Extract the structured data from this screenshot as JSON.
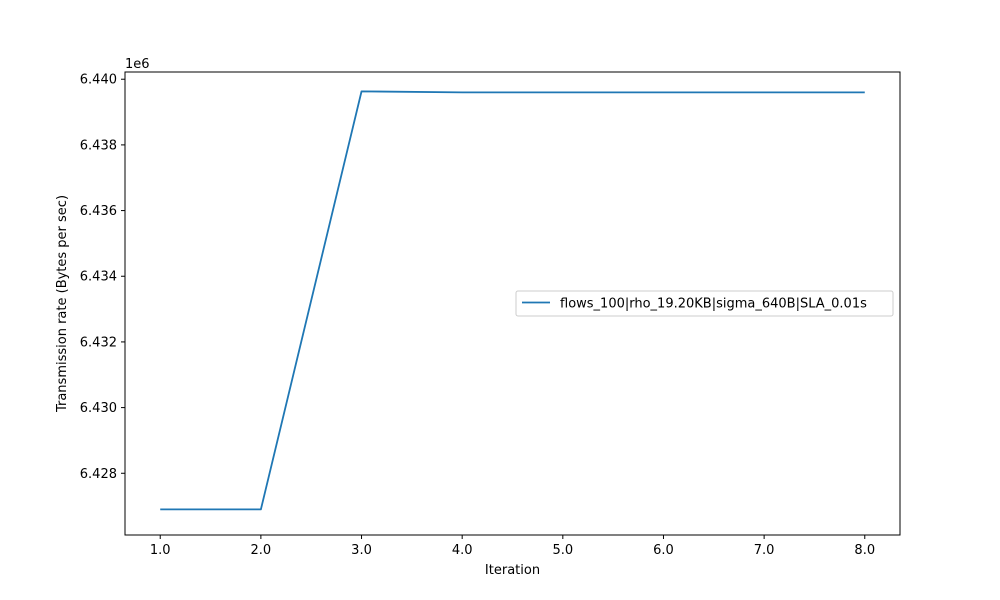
{
  "chart_data": {
    "type": "line",
    "xlabel": "Iteration",
    "ylabel": "Transmission rate (Bytes per sec)",
    "y_offset_label": "1e6",
    "xlim": [
      0.65,
      8.35
    ],
    "ylim": [
      6.42612,
      6.44022
    ],
    "x_ticks": [
      1.0,
      2.0,
      3.0,
      4.0,
      5.0,
      6.0,
      7.0,
      8.0
    ],
    "x_tick_labels": [
      "1.0",
      "2.0",
      "3.0",
      "4.0",
      "5.0",
      "6.0",
      "7.0",
      "8.0"
    ],
    "y_ticks": [
      6.428,
      6.43,
      6.432,
      6.434,
      6.436,
      6.438,
      6.44
    ],
    "y_tick_labels": [
      "6.428",
      "6.430",
      "6.432",
      "6.434",
      "6.436",
      "6.438",
      "6.440"
    ],
    "grid": false,
    "legend_position": "center-right",
    "series": [
      {
        "name": "flows_100|rho_19.20KB|sigma_640B|SLA_0.01s",
        "color": "#1f77b4",
        "x": [
          1,
          2,
          3,
          4,
          5,
          6,
          7,
          8
        ],
        "y": [
          6.4269,
          6.4269,
          6.43963,
          6.4396,
          6.4396,
          6.4396,
          6.4396,
          6.4396
        ]
      }
    ]
  }
}
